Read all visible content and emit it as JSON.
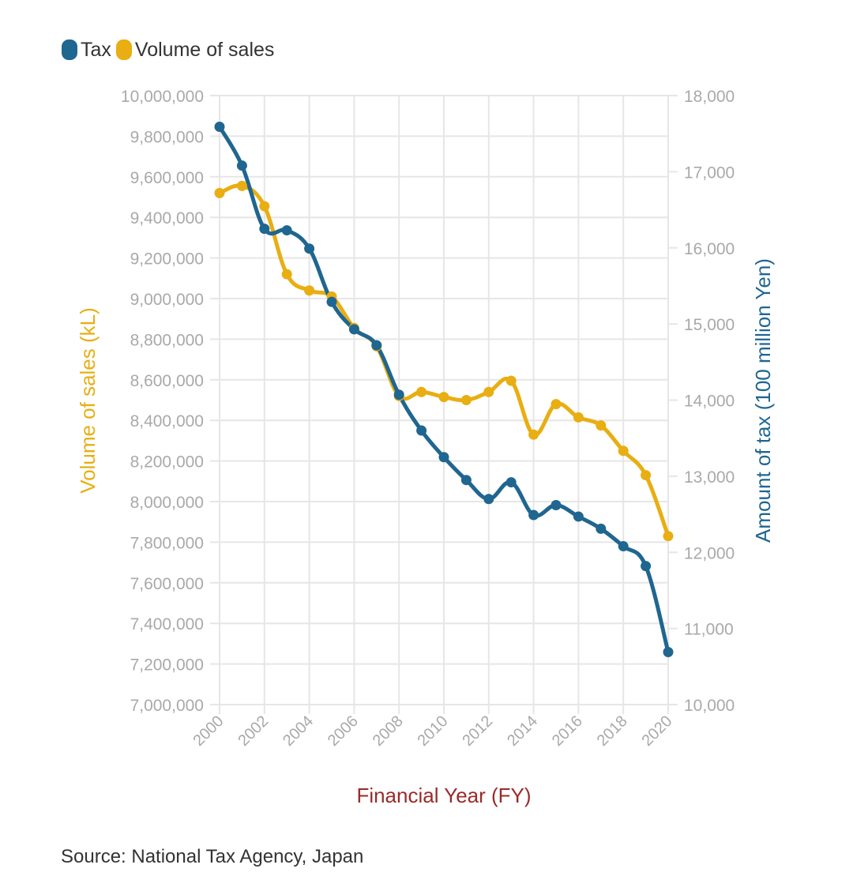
{
  "legend": {
    "tax_label": "Tax",
    "volume_label": "Volume of sales"
  },
  "colors": {
    "tax": "#1f6690",
    "volume": "#e8ae12",
    "x_title": "#9b2a2a",
    "grid": "#e6e6e6",
    "tick": "#a9a9a9"
  },
  "source": "Source: National Tax Agency, Japan",
  "chart_data": {
    "type": "line",
    "x_title": "Financial Year (FY)",
    "y_left_title": "Volume of sales (kL)",
    "y_right_title": "Amount of tax (100 million Yen)",
    "x_range": [
      2000,
      2020
    ],
    "x_ticks": [
      2000,
      2002,
      2004,
      2006,
      2008,
      2010,
      2012,
      2014,
      2016,
      2018,
      2020
    ],
    "y_left_range": [
      7000000,
      10000000
    ],
    "y_left_ticks": [
      7000000,
      7200000,
      7400000,
      7600000,
      7800000,
      8000000,
      8200000,
      8400000,
      8600000,
      8800000,
      9000000,
      9200000,
      9400000,
      9600000,
      9800000,
      10000000
    ],
    "y_left_tick_labels": [
      "7,000,000",
      "7,200,000",
      "7,400,000",
      "7,600,000",
      "7,800,000",
      "8,000,000",
      "8,200,000",
      "8,400,000",
      "8,600,000",
      "8,800,000",
      "9,000,000",
      "9,200,000",
      "9,400,000",
      "9,600,000",
      "9,800,000",
      "10,000,000"
    ],
    "y_right_range": [
      10000,
      18000
    ],
    "y_right_ticks": [
      10000,
      11000,
      12000,
      13000,
      14000,
      15000,
      16000,
      17000,
      18000
    ],
    "y_right_tick_labels": [
      "10,000",
      "11,000",
      "12,000",
      "13,000",
      "14,000",
      "15,000",
      "16,000",
      "17,000",
      "18,000"
    ],
    "grid": true,
    "legend_position": "top-left",
    "series": [
      {
        "name": "Tax",
        "axis": "right",
        "x": [
          2000,
          2001,
          2002,
          2003,
          2004,
          2005,
          2006,
          2007,
          2008,
          2009,
          2010,
          2011,
          2012,
          2013,
          2014,
          2015,
          2016,
          2017,
          2018,
          2019,
          2020
        ],
        "values": [
          17590,
          17080,
          16250,
          16230,
          15990,
          15290,
          14930,
          14720,
          14070,
          13600,
          13250,
          12950,
          12700,
          12920,
          12490,
          12620,
          12470,
          12310,
          12080,
          11820,
          10690
        ]
      },
      {
        "name": "Volume of sales",
        "axis": "left",
        "x": [
          2000,
          2001,
          2002,
          2003,
          2004,
          2005,
          2006,
          2007,
          2008,
          2009,
          2010,
          2011,
          2012,
          2013,
          2014,
          2015,
          2016,
          2017,
          2018,
          2019,
          2020
        ],
        "values": [
          9520000,
          9555000,
          9455000,
          9120000,
          9040000,
          9010000,
          8855000,
          8765000,
          8520000,
          8540000,
          8515000,
          8500000,
          8540000,
          8595000,
          8330000,
          8480000,
          8415000,
          8375000,
          8250000,
          8130000,
          7830000
        ]
      }
    ]
  }
}
